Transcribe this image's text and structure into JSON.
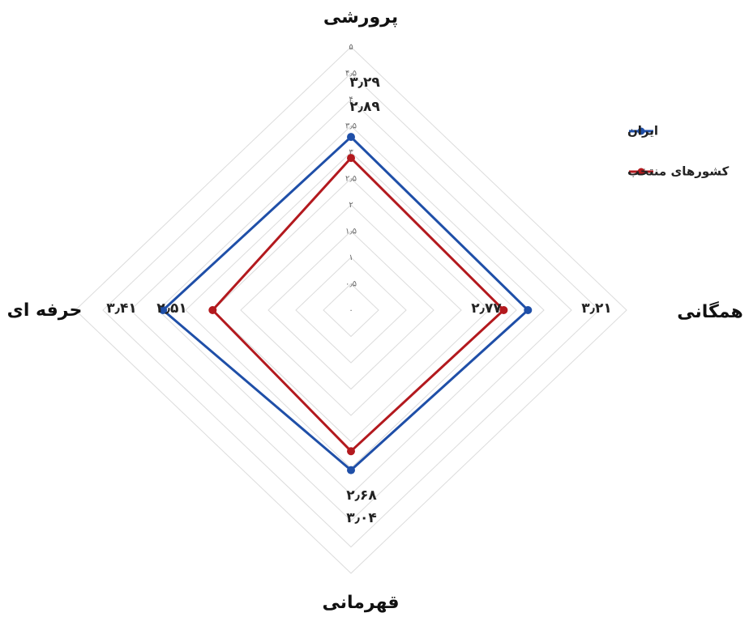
{
  "chart_data": {
    "type": "radar",
    "categories": [
      "پرورشی",
      "همگانی",
      "قهرمانی",
      "حرفه ای"
    ],
    "rlim": [
      0,
      5
    ],
    "rticks": [
      {
        "value": 0,
        "label": "۰"
      },
      {
        "value": 0.5,
        "label": "۰٫۵"
      },
      {
        "value": 1,
        "label": "۱"
      },
      {
        "value": 1.5,
        "label": "۱٫۵"
      },
      {
        "value": 2,
        "label": "۲"
      },
      {
        "value": 2.5,
        "label": "۲٫۵"
      },
      {
        "value": 3,
        "label": "۳"
      },
      {
        "value": 3.5,
        "label": "۳٫۵"
      },
      {
        "value": 4,
        "label": "۴"
      },
      {
        "value": 4.5,
        "label": "۴٫۵"
      },
      {
        "value": 5,
        "label": "۵"
      }
    ],
    "series": [
      {
        "name": "ایران",
        "color": "#1f4fa8",
        "values": [
          3.29,
          3.21,
          3.04,
          3.41
        ],
        "value_labels": [
          "۳٫۲۹",
          "۳٫۲۱",
          "۳٫۰۴",
          "۳٫۴۱"
        ]
      },
      {
        "name": "کشورهای منتخب",
        "color": "#b3191e",
        "values": [
          2.89,
          2.77,
          2.68,
          2.51
        ],
        "value_labels": [
          "۲٫۸۹",
          "۲٫۷۷",
          "۲٫۶۸",
          "۲٫۵۱"
        ]
      }
    ]
  }
}
